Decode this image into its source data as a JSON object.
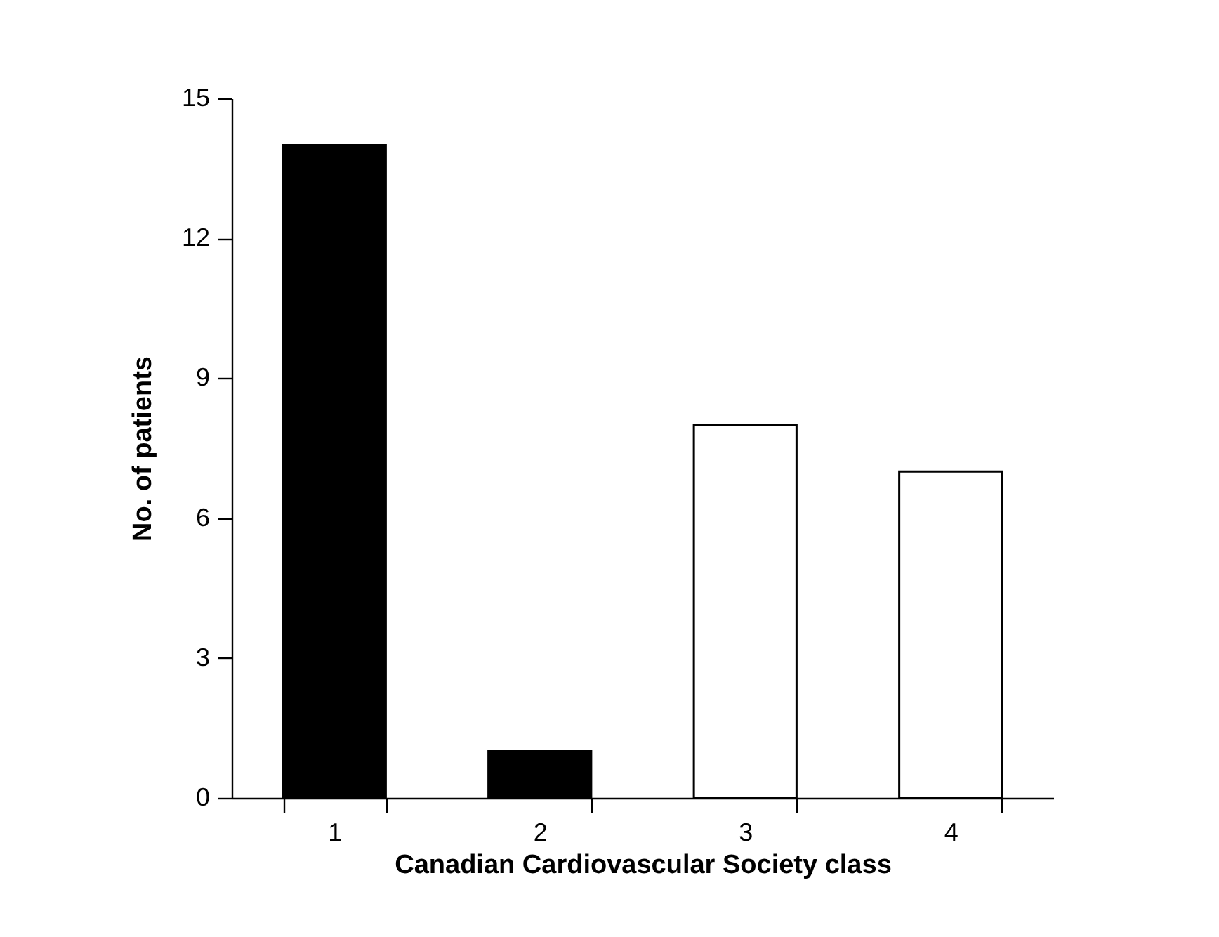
{
  "chart_data": {
    "type": "bar",
    "xlabel": "Canadian Cardiovascular Society class",
    "ylabel": "No. of patients",
    "categories": [
      "1",
      "2",
      "3",
      "4"
    ],
    "values": [
      14,
      1,
      8,
      7
    ],
    "colors": [
      "#000000",
      "#000000",
      "#ffffff",
      "#ffffff"
    ],
    "ylim": [
      0,
      15
    ],
    "yticks": [
      0,
      3,
      6,
      9,
      12,
      15
    ],
    "grid": false,
    "legend": false
  }
}
